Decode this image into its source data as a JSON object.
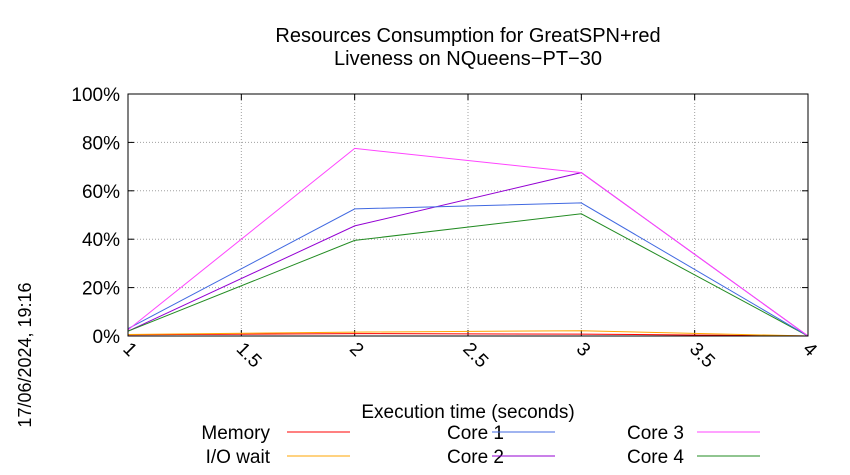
{
  "chart_data": {
    "type": "line",
    "title": "Resources Consumption for GreatSPN+red",
    "subtitle": "Liveness on NQueens−PT−30",
    "xlabel": "Execution time (seconds)",
    "ylabel": "",
    "xlim": [
      1,
      4
    ],
    "ylim": [
      0,
      100
    ],
    "x_ticks": [
      "1",
      "1.5",
      "2",
      "2.5",
      "3",
      "3.5",
      "4"
    ],
    "y_ticks": [
      "0%",
      "20%",
      "40%",
      "60%",
      "80%",
      "100%"
    ],
    "grid": true,
    "legend_position": "bottom",
    "x": [
      1,
      2,
      3,
      4
    ],
    "series": [
      {
        "name": "Memory",
        "color": "#ff0000",
        "values": [
          0.5,
          1.0,
          0.8,
          0
        ]
      },
      {
        "name": "I/O wait",
        "color": "#ffa500",
        "values": [
          0.6,
          1.6,
          2.2,
          0
        ]
      },
      {
        "name": "Core 1",
        "color": "#4169e1",
        "values": [
          3,
          52.5,
          55,
          0
        ]
      },
      {
        "name": "Core 2",
        "color": "#9400d3",
        "values": [
          2,
          45.5,
          67.5,
          0
        ]
      },
      {
        "name": "Core 3",
        "color": "#ff44ff",
        "values": [
          2.5,
          77.5,
          67.5,
          0
        ]
      },
      {
        "name": "Core 4",
        "color": "#228b22",
        "values": [
          2,
          39.5,
          50.5,
          0
        ]
      }
    ]
  },
  "timestamp": "17/06/2024, 19:16"
}
